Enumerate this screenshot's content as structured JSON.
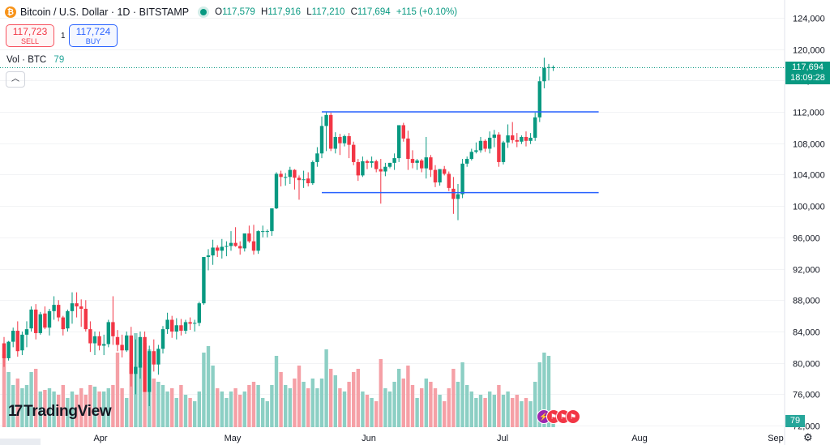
{
  "header": {
    "title": "Bitcoin / U.S. Dollar · 1D · BITSTAMP",
    "coin_glyph": "₿",
    "ohlc": [
      {
        "k": "O",
        "v": "117,579"
      },
      {
        "k": "H",
        "v": "117,916"
      },
      {
        "k": "L",
        "v": "117,210"
      },
      {
        "k": "C",
        "v": "117,694"
      },
      {
        "k": "",
        "v": "+115 (+0.10%)"
      }
    ]
  },
  "trade": {
    "sell_price": "117,723",
    "sell_label": "SELL",
    "spread": "1",
    "buy_price": "117,724",
    "buy_label": "BUY"
  },
  "volume_legend": {
    "label": "Vol · BTC",
    "value": "79"
  },
  "price_label": {
    "price": "117,694",
    "countdown": "18:09:28"
  },
  "volume_label": "79",
  "logo_text": "TradingView",
  "colors": {
    "up": "#089981",
    "down": "#f23645",
    "vol_up": "#8ccfc4",
    "vol_down": "#f5a0a6",
    "trend": "#2962ff"
  },
  "chart_data": {
    "type": "candlestick",
    "symbol": "Bitcoin / U.S. Dollar",
    "interval": "1D",
    "exchange": "BITSTAMP",
    "y_ticks": [
      72000,
      76000,
      80000,
      84000,
      88000,
      92000,
      96000,
      100000,
      104000,
      108000,
      112000,
      116000,
      120000,
      124000
    ],
    "y_range": [
      70500,
      125000
    ],
    "x_ticks": [
      "Apr",
      "May",
      "Jun",
      "Jul",
      "Aug",
      "Sep"
    ],
    "trend_lines": [
      {
        "value": 112000,
        "from": "2025-05-21",
        "to": "2025-07-21"
      },
      {
        "value": 101700,
        "from": "2025-05-21",
        "to": "2025-07-21"
      }
    ],
    "last_price": 117694,
    "candles": [
      [
        82500,
        83300,
        79500,
        80600,
        45
      ],
      [
        80600,
        82800,
        80300,
        82700,
        34
      ],
      [
        82700,
        84500,
        82000,
        84100,
        26
      ],
      [
        84100,
        85300,
        80800,
        81500,
        30
      ],
      [
        81600,
        84000,
        81000,
        83600,
        24
      ],
      [
        83600,
        85300,
        82000,
        84300,
        26
      ],
      [
        84400,
        87200,
        84000,
        86800,
        34
      ],
      [
        86800,
        87500,
        83000,
        83800,
        36
      ],
      [
        83800,
        86500,
        83600,
        86200,
        22
      ],
      [
        86300,
        87200,
        84300,
        84500,
        23
      ],
      [
        84500,
        86900,
        83500,
        86600,
        24
      ],
      [
        86600,
        88500,
        85500,
        87400,
        22
      ],
      [
        87400,
        88000,
        85300,
        85800,
        20
      ],
      [
        85800,
        86000,
        83500,
        84300,
        26
      ],
      [
        84400,
        86800,
        84000,
        86600,
        18
      ],
      [
        86600,
        89000,
        85000,
        87600,
        22
      ],
      [
        87600,
        89000,
        85800,
        87200,
        20
      ],
      [
        87200,
        88100,
        84600,
        86900,
        24
      ],
      [
        86900,
        88000,
        84000,
        84300,
        20
      ],
      [
        84300,
        85300,
        81400,
        82500,
        26
      ],
      [
        82500,
        84000,
        81000,
        83400,
        25
      ],
      [
        83400,
        84000,
        81600,
        82200,
        22
      ],
      [
        82200,
        83600,
        81000,
        82400,
        22
      ],
      [
        82400,
        85500,
        82000,
        85200,
        24
      ],
      [
        85200,
        88500,
        82300,
        83400,
        26
      ],
      [
        83300,
        84200,
        81500,
        82300,
        46
      ],
      [
        82300,
        83600,
        80700,
        81600,
        24
      ],
      [
        81600,
        84000,
        81400,
        83500,
        18
      ],
      [
        83500,
        84600,
        77000,
        78600,
        40
      ],
      [
        78600,
        83000,
        76000,
        79500,
        58
      ],
      [
        79400,
        84000,
        78000,
        83300,
        40
      ],
      [
        83300,
        84000,
        76500,
        76300,
        52
      ],
      [
        76300,
        82200,
        74500,
        81500,
        48
      ],
      [
        81500,
        83000,
        78900,
        79800,
        30
      ],
      [
        79800,
        82300,
        78500,
        81800,
        28
      ],
      [
        81800,
        84700,
        81200,
        84300,
        26
      ],
      [
        84300,
        86400,
        83700,
        85500,
        22
      ],
      [
        85500,
        86000,
        83200,
        84000,
        24
      ],
      [
        84000,
        85700,
        83000,
        84800,
        18
      ],
      [
        84800,
        85600,
        83500,
        84100,
        26
      ],
      [
        84100,
        85500,
        83700,
        85200,
        20
      ],
      [
        85200,
        85800,
        84200,
        85000,
        18
      ],
      [
        85000,
        85500,
        84000,
        85100,
        16
      ],
      [
        85100,
        87800,
        84700,
        87600,
        22
      ],
      [
        87600,
        93500,
        87400,
        93500,
        46
      ],
      [
        93500,
        94500,
        91800,
        93700,
        50
      ],
      [
        93700,
        95700,
        92500,
        94700,
        38
      ],
      [
        94700,
        95000,
        93500,
        94300,
        24
      ],
      [
        94300,
        95800,
        93300,
        94800,
        22
      ],
      [
        94800,
        95500,
        93600,
        94900,
        18
      ],
      [
        94900,
        96800,
        94300,
        95300,
        22
      ],
      [
        95300,
        97300,
        94800,
        94900,
        24
      ],
      [
        94900,
        95500,
        93800,
        94600,
        20
      ],
      [
        94600,
        96500,
        94200,
        96500,
        22
      ],
      [
        96500,
        97500,
        95300,
        95500,
        26
      ],
      [
        95500,
        97600,
        93800,
        94300,
        28
      ],
      [
        94300,
        96900,
        93900,
        96800,
        26
      ],
      [
        96800,
        97500,
        96000,
        96800,
        18
      ],
      [
        96800,
        97000,
        96000,
        96800,
        16
      ],
      [
        96800,
        99600,
        96200,
        99700,
        26
      ],
      [
        99700,
        104300,
        99600,
        104100,
        44
      ],
      [
        104100,
        104500,
        102500,
        103700,
        34
      ],
      [
        103700,
        104200,
        102600,
        103700,
        26
      ],
      [
        103700,
        105000,
        102800,
        104600,
        24
      ],
      [
        104600,
        104700,
        102100,
        103600,
        30
      ],
      [
        103600,
        103900,
        100800,
        103300,
        38
      ],
      [
        103300,
        104500,
        102300,
        103400,
        28
      ],
      [
        103500,
        104300,
        102500,
        102900,
        24
      ],
      [
        102900,
        105800,
        102700,
        105600,
        30
      ],
      [
        105600,
        107500,
        105000,
        106700,
        24
      ],
      [
        106700,
        111400,
        106100,
        110200,
        30
      ],
      [
        110200,
        112000,
        107000,
        111600,
        48
      ],
      [
        111600,
        111900,
        107000,
        107300,
        36
      ],
      [
        107300,
        109400,
        106700,
        108800,
        32
      ],
      [
        108800,
        109200,
        106500,
        108000,
        24
      ],
      [
        108000,
        109100,
        107600,
        108900,
        22
      ],
      [
        108900,
        109300,
        106100,
        107800,
        28
      ],
      [
        107800,
        108200,
        105200,
        105600,
        34
      ],
      [
        105600,
        106000,
        103200,
        103900,
        36
      ],
      [
        103900,
        106300,
        103700,
        105700,
        22
      ],
      [
        105700,
        105900,
        104700,
        105500,
        20
      ],
      [
        105500,
        106300,
        104900,
        105700,
        18
      ],
      [
        105700,
        105900,
        104300,
        104700,
        16
      ],
      [
        104700,
        106000,
        100300,
        104400,
        42
      ],
      [
        104400,
        105500,
        103800,
        105000,
        24
      ],
      [
        105000,
        105500,
        104800,
        105500,
        22
      ],
      [
        105500,
        106700,
        104600,
        106100,
        28
      ],
      [
        106100,
        110200,
        105600,
        110300,
        36
      ],
      [
        110300,
        110600,
        108200,
        108600,
        30
      ],
      [
        108600,
        109600,
        104600,
        106000,
        38
      ],
      [
        106000,
        107100,
        104800,
        105500,
        26
      ],
      [
        105500,
        106000,
        104600,
        105800,
        18
      ],
      [
        105800,
        106000,
        104300,
        104800,
        24
      ],
      [
        104800,
        108800,
        103500,
        106200,
        30
      ],
      [
        106200,
        106500,
        103700,
        104600,
        28
      ],
      [
        104600,
        105200,
        102400,
        103000,
        24
      ],
      [
        103000,
        104700,
        102600,
        104700,
        20
      ],
      [
        104700,
        105100,
        103900,
        104100,
        16
      ],
      [
        104100,
        104400,
        101900,
        102300,
        24
      ],
      [
        102200,
        103700,
        99000,
        100900,
        36
      ],
      [
        100900,
        102800,
        98200,
        101500,
        28
      ],
      [
        101500,
        106000,
        101000,
        105400,
        40
      ],
      [
        105400,
        106300,
        105000,
        106000,
        26
      ],
      [
        106000,
        107300,
        105800,
        106900,
        22
      ],
      [
        106900,
        108100,
        106700,
        107100,
        18
      ],
      [
        107100,
        108800,
        106800,
        108300,
        20
      ],
      [
        108300,
        108500,
        106900,
        107300,
        18
      ],
      [
        107300,
        109500,
        106700,
        108700,
        22
      ],
      [
        108700,
        109700,
        107500,
        109100,
        20
      ],
      [
        109100,
        109400,
        105000,
        105600,
        26
      ],
      [
        105600,
        108300,
        105300,
        108100,
        20
      ],
      [
        108100,
        110400,
        107400,
        109000,
        22
      ],
      [
        109000,
        110700,
        108000,
        108400,
        18
      ],
      [
        108400,
        109300,
        107500,
        108200,
        20
      ],
      [
        108200,
        109000,
        107900,
        108800,
        16
      ],
      [
        108800,
        109500,
        107600,
        108300,
        18
      ],
      [
        108300,
        109300,
        107900,
        108700,
        16
      ],
      [
        108700,
        111900,
        108300,
        111300,
        28
      ],
      [
        111300,
        116500,
        110700,
        115900,
        40
      ],
      [
        115900,
        118900,
        115000,
        117600,
        46
      ],
      [
        117600,
        118100,
        116000,
        117700,
        44
      ],
      [
        117579,
        117916,
        117210,
        117694,
        6
      ]
    ]
  }
}
